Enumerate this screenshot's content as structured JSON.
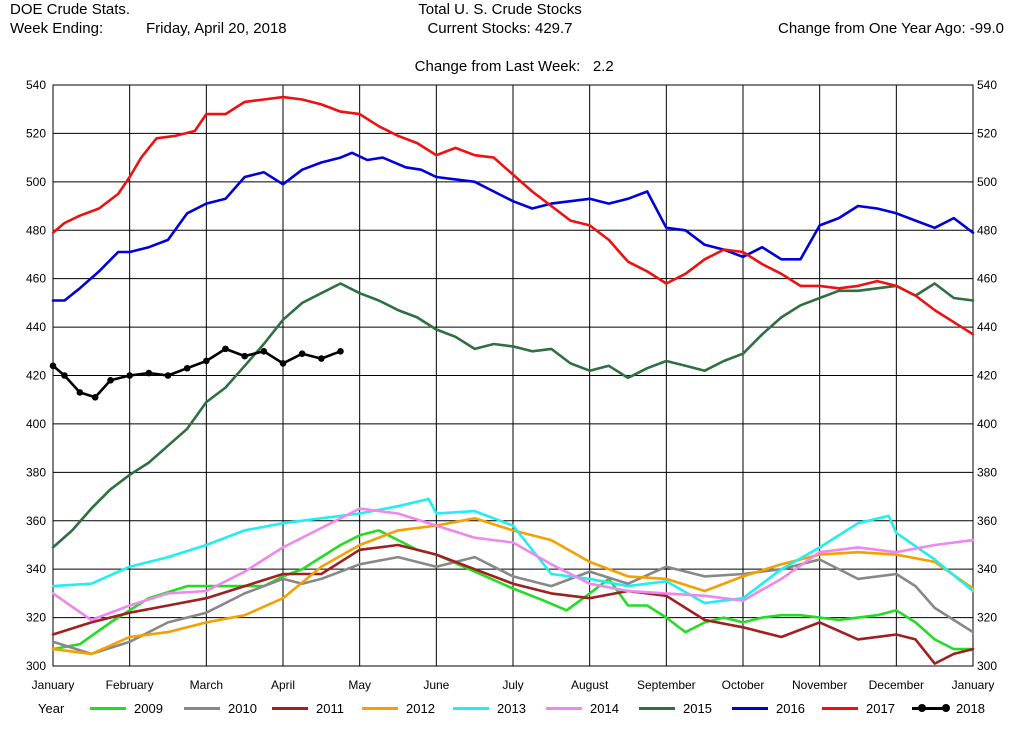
{
  "header": {
    "app_title": "DOE Crude Stats.",
    "week_ending_label": "Week Ending:",
    "week_ending_value": "Friday, April 20, 2018",
    "center_title": "Total U. S. Crude Stocks",
    "current_stocks": "Current Stocks: 429.7",
    "change_last_week_label": "Change from Last Week:",
    "change_last_week_value": "2.2",
    "change_year_ago": "Change from One Year Ago: -99.0"
  },
  "legend": {
    "title": "Year"
  },
  "colors": {
    "2009": "#22dd22",
    "2010": "#888888",
    "2011": "#a02020",
    "2012": "#f5a000",
    "2013": "#22eeee",
    "2014": "#ee88ee",
    "2015": "#2e7040",
    "2016": "#0000dd",
    "2017": "#ee1111",
    "2018": "#000000"
  },
  "chart_data": {
    "type": "line",
    "title": "Total U. S. Crude Stocks",
    "xlabel": "",
    "ylabel": "",
    "ylim": [
      300,
      540
    ],
    "xlim": [
      0,
      12
    ],
    "yticks": [
      300,
      320,
      340,
      360,
      380,
      400,
      420,
      440,
      460,
      480,
      500,
      520,
      540
    ],
    "month_labels": [
      "January",
      "February",
      "March",
      "April",
      "May",
      "June",
      "July",
      "August",
      "September",
      "October",
      "November",
      "December",
      "January"
    ],
    "grid": true,
    "legend_position": "bottom",
    "series": [
      {
        "name": "2009",
        "x": [
          0,
          0.35,
          0.75,
          1.25,
          1.75,
          2.25,
          2.75,
          3.0,
          3.25,
          3.5,
          3.75,
          4.0,
          4.25,
          4.5,
          4.75,
          5.0,
          5.5,
          6.0,
          6.4,
          6.7,
          7.0,
          7.25,
          7.5,
          7.75,
          8.0,
          8.25,
          8.5,
          8.75,
          9.0,
          9.25,
          9.5,
          9.75,
          10.0,
          10.25,
          10.5,
          10.75,
          11.0,
          11.25,
          11.5,
          11.75,
          12.0
        ],
        "y": [
          307,
          309,
          318,
          328,
          333,
          333,
          333,
          337,
          340,
          345,
          350,
          354,
          356,
          352,
          348,
          346,
          339,
          332,
          327,
          323,
          330,
          336,
          325,
          325,
          320,
          314,
          318,
          320,
          318,
          320,
          321,
          321,
          320,
          319,
          320,
          321,
          323,
          318,
          311,
          307,
          307
        ]
      },
      {
        "name": "2010",
        "x": [
          0,
          0.5,
          1.0,
          1.5,
          2.0,
          2.5,
          3.0,
          3.25,
          3.5,
          3.75,
          4.0,
          4.5,
          5.0,
          5.5,
          6.0,
          6.5,
          7.0,
          7.5,
          8.0,
          8.5,
          9.0,
          9.5,
          10.0,
          10.5,
          11.0,
          11.25,
          11.5,
          11.75,
          12.0
        ],
        "y": [
          310,
          305,
          310,
          318,
          322,
          330,
          336,
          334,
          336,
          339,
          342,
          345,
          341,
          345,
          337,
          333,
          339,
          334,
          341,
          337,
          338,
          340,
          344,
          336,
          338,
          333,
          324,
          319,
          314
        ]
      },
      {
        "name": "2011",
        "x": [
          0,
          0.5,
          1.0,
          1.5,
          2.0,
          2.5,
          3.0,
          3.5,
          4.0,
          4.5,
          5.0,
          5.5,
          6.0,
          6.5,
          7.0,
          7.5,
          8.0,
          8.5,
          9.0,
          9.5,
          10.0,
          10.5,
          11.0,
          11.25,
          11.5,
          11.75,
          12.0
        ],
        "y": [
          313,
          318,
          322,
          325,
          328,
          333,
          338,
          338,
          348,
          350,
          346,
          340,
          334,
          330,
          328,
          331,
          329,
          319,
          316,
          312,
          318,
          311,
          313,
          311,
          301,
          305,
          307
        ]
      },
      {
        "name": "2012",
        "x": [
          0,
          0.5,
          1.0,
          1.5,
          2.0,
          2.5,
          3.0,
          3.5,
          4.0,
          4.5,
          5.0,
          5.5,
          6.0,
          6.5,
          7.0,
          7.5,
          8.0,
          8.5,
          9.0,
          9.5,
          10.0,
          10.5,
          11.0,
          11.5,
          12.0
        ],
        "y": [
          307,
          305,
          312,
          314,
          318,
          321,
          328,
          341,
          350,
          356,
          358,
          361,
          356,
          352,
          343,
          337,
          336,
          331,
          337,
          342,
          346,
          347,
          346,
          343,
          332
        ]
      },
      {
        "name": "2013",
        "x": [
          0,
          0.5,
          1.0,
          1.5,
          2.0,
          2.5,
          3.0,
          3.5,
          4.0,
          4.5,
          4.9,
          5.0,
          5.5,
          6.0,
          6.5,
          7.0,
          7.5,
          8.0,
          8.5,
          9.0,
          9.5,
          10.0,
          10.5,
          10.9,
          11.0,
          11.5,
          12.0
        ],
        "y": [
          333,
          334,
          341,
          345,
          350,
          356,
          359,
          361,
          363,
          366,
          369,
          363,
          364,
          358,
          338,
          336,
          333,
          335,
          326,
          328,
          340,
          349,
          359,
          362,
          355,
          344,
          331
        ]
      },
      {
        "name": "2014",
        "x": [
          0,
          0.5,
          1.0,
          1.5,
          2.0,
          2.5,
          3.0,
          3.5,
          4.0,
          4.5,
          5.0,
          5.5,
          6.0,
          6.5,
          7.0,
          7.5,
          8.0,
          8.5,
          9.0,
          9.5,
          10.0,
          10.5,
          11.0,
          11.5,
          12.0
        ],
        "y": [
          330,
          319,
          325,
          330,
          331,
          339,
          349,
          357,
          365,
          363,
          358,
          353,
          351,
          342,
          334,
          331,
          330,
          329,
          327,
          336,
          347,
          349,
          347,
          350,
          352
        ]
      },
      {
        "name": "2015",
        "x": [
          0,
          0.25,
          0.5,
          0.75,
          1.0,
          1.25,
          1.5,
          1.75,
          2.0,
          2.25,
          2.5,
          2.75,
          3.0,
          3.25,
          3.5,
          3.75,
          4.0,
          4.25,
          4.5,
          4.75,
          5.0,
          5.25,
          5.5,
          5.75,
          6.0,
          6.25,
          6.5,
          6.75,
          7.0,
          7.25,
          7.5,
          7.75,
          8.0,
          8.25,
          8.5,
          8.75,
          9.0,
          9.25,
          9.5,
          9.75,
          10.0,
          10.25,
          10.5,
          10.75,
          11.0,
          11.25,
          11.5,
          11.75,
          12.0
        ],
        "y": [
          349,
          356,
          365,
          373,
          379,
          384,
          391,
          398,
          409,
          415,
          424,
          433,
          443,
          450,
          454,
          458,
          454,
          451,
          447,
          444,
          439,
          436,
          431,
          433,
          432,
          430,
          431,
          425,
          422,
          424,
          419,
          423,
          426,
          424,
          422,
          426,
          429,
          437,
          444,
          449,
          452,
          455,
          455,
          456,
          457,
          453,
          458,
          452,
          451
        ]
      },
      {
        "name": "2016",
        "x": [
          0,
          0.15,
          0.35,
          0.6,
          0.85,
          1.0,
          1.25,
          1.5,
          1.75,
          2.0,
          2.25,
          2.5,
          2.75,
          3.0,
          3.25,
          3.5,
          3.75,
          3.9,
          4.1,
          4.3,
          4.6,
          4.8,
          5.0,
          5.25,
          5.5,
          5.75,
          6.0,
          6.25,
          6.5,
          6.75,
          7.0,
          7.25,
          7.5,
          7.75,
          8.0,
          8.25,
          8.5,
          8.75,
          9.0,
          9.25,
          9.5,
          9.75,
          10.0,
          10.25,
          10.5,
          10.75,
          11.0,
          11.25,
          11.5,
          11.75,
          12.0
        ],
        "y": [
          451,
          451,
          456,
          463,
          471,
          471,
          473,
          476,
          487,
          491,
          493,
          502,
          504,
          499,
          505,
          508,
          510,
          512,
          509,
          510,
          506,
          505,
          502,
          501,
          500,
          496,
          492,
          489,
          491,
          492,
          493,
          491,
          493,
          496,
          481,
          480,
          474,
          472,
          469,
          473,
          468,
          468,
          482,
          485,
          490,
          489,
          487,
          484,
          481,
          485,
          479
        ]
      },
      {
        "name": "2017",
        "x": [
          0,
          0.15,
          0.35,
          0.6,
          0.85,
          1.0,
          1.15,
          1.35,
          1.6,
          1.85,
          2.0,
          2.25,
          2.5,
          2.75,
          3.0,
          3.25,
          3.5,
          3.75,
          4.0,
          4.25,
          4.5,
          4.75,
          5.0,
          5.25,
          5.5,
          5.75,
          6.0,
          6.25,
          6.5,
          6.75,
          7.0,
          7.25,
          7.5,
          7.75,
          8.0,
          8.25,
          8.5,
          8.75,
          9.0,
          9.25,
          9.5,
          9.75,
          10.0,
          10.25,
          10.5,
          10.75,
          11.0,
          11.25,
          11.5,
          11.75,
          12.0
        ],
        "y": [
          479,
          483,
          486,
          489,
          495,
          502,
          510,
          518,
          519,
          521,
          528,
          528,
          533,
          534,
          535,
          534,
          532,
          529,
          528,
          523,
          519,
          516,
          511,
          514,
          511,
          510,
          503,
          496,
          490,
          484,
          482,
          476,
          467,
          463,
          458,
          462,
          468,
          472,
          471,
          466,
          462,
          457,
          457,
          456,
          457,
          459,
          457,
          453,
          447,
          442,
          437
        ]
      },
      {
        "name": "2018",
        "x": [
          0,
          0.15,
          0.35,
          0.55,
          0.75,
          1.0,
          1.25,
          1.5,
          1.75,
          2.0,
          2.25,
          2.5,
          2.75,
          3.0,
          3.25,
          3.5,
          3.75
        ],
        "y": [
          424,
          420,
          413,
          411,
          418,
          420,
          421,
          420,
          423,
          426,
          431,
          428,
          430,
          425,
          429,
          427,
          430
        ]
      }
    ]
  }
}
